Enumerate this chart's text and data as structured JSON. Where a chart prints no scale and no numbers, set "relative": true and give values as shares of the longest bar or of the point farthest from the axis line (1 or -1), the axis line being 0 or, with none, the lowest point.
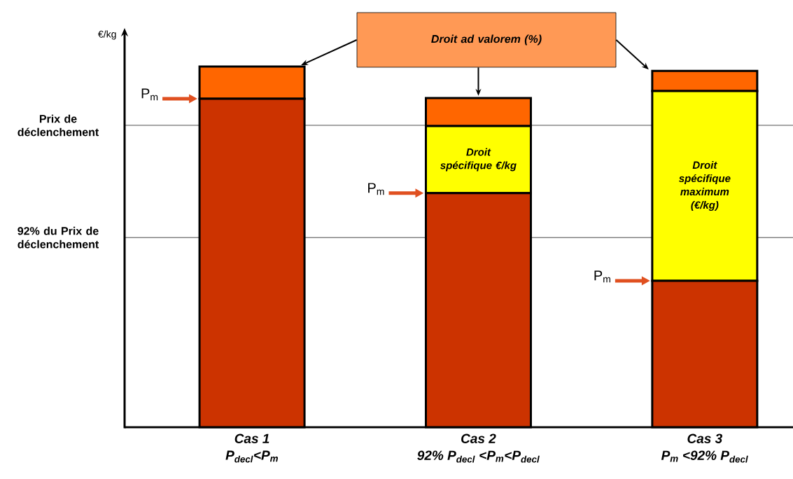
{
  "chart_data": {
    "type": "bar",
    "stacked": true,
    "relative": true,
    "ylabel": "€/kg",
    "categories": [
      "Cas 1",
      "Cas 2",
      "Cas 3"
    ],
    "series": [
      {
        "color": "#cc3300",
        "values": [
          0.911,
          0.649,
          0.406
        ]
      },
      {
        "color": "#ffff00",
        "values": [
          null,
          0.186,
          0.526
        ]
      },
      {
        "color": "#ff6600",
        "values": [
          0.089,
          0.078,
          0.056
        ]
      }
    ],
    "ref_lines": [
      {
        "axis": "y",
        "value": 0.837,
        "label": "Prix de déclenchement",
        "color": "#000000"
      },
      {
        "axis": "y",
        "value": 0.526,
        "label": "92% du Prix de déclenchement",
        "color": "#000000"
      }
    ],
    "annotations": [
      "Droit ad valorem (%)",
      "P$_{m}$",
      "P$_{m}$",
      "P$_{m}$",
      "Droit spécifique €/kg",
      "Droit spécifique maximum (€/kg)",
      "P$_{decl}$<P$_{m}$",
      "92% P$_{decl}$ <P$_{m}$<P$_{decl}$",
      "P$_{m}$ <92% P$_{decl}$"
    ]
  }
}
